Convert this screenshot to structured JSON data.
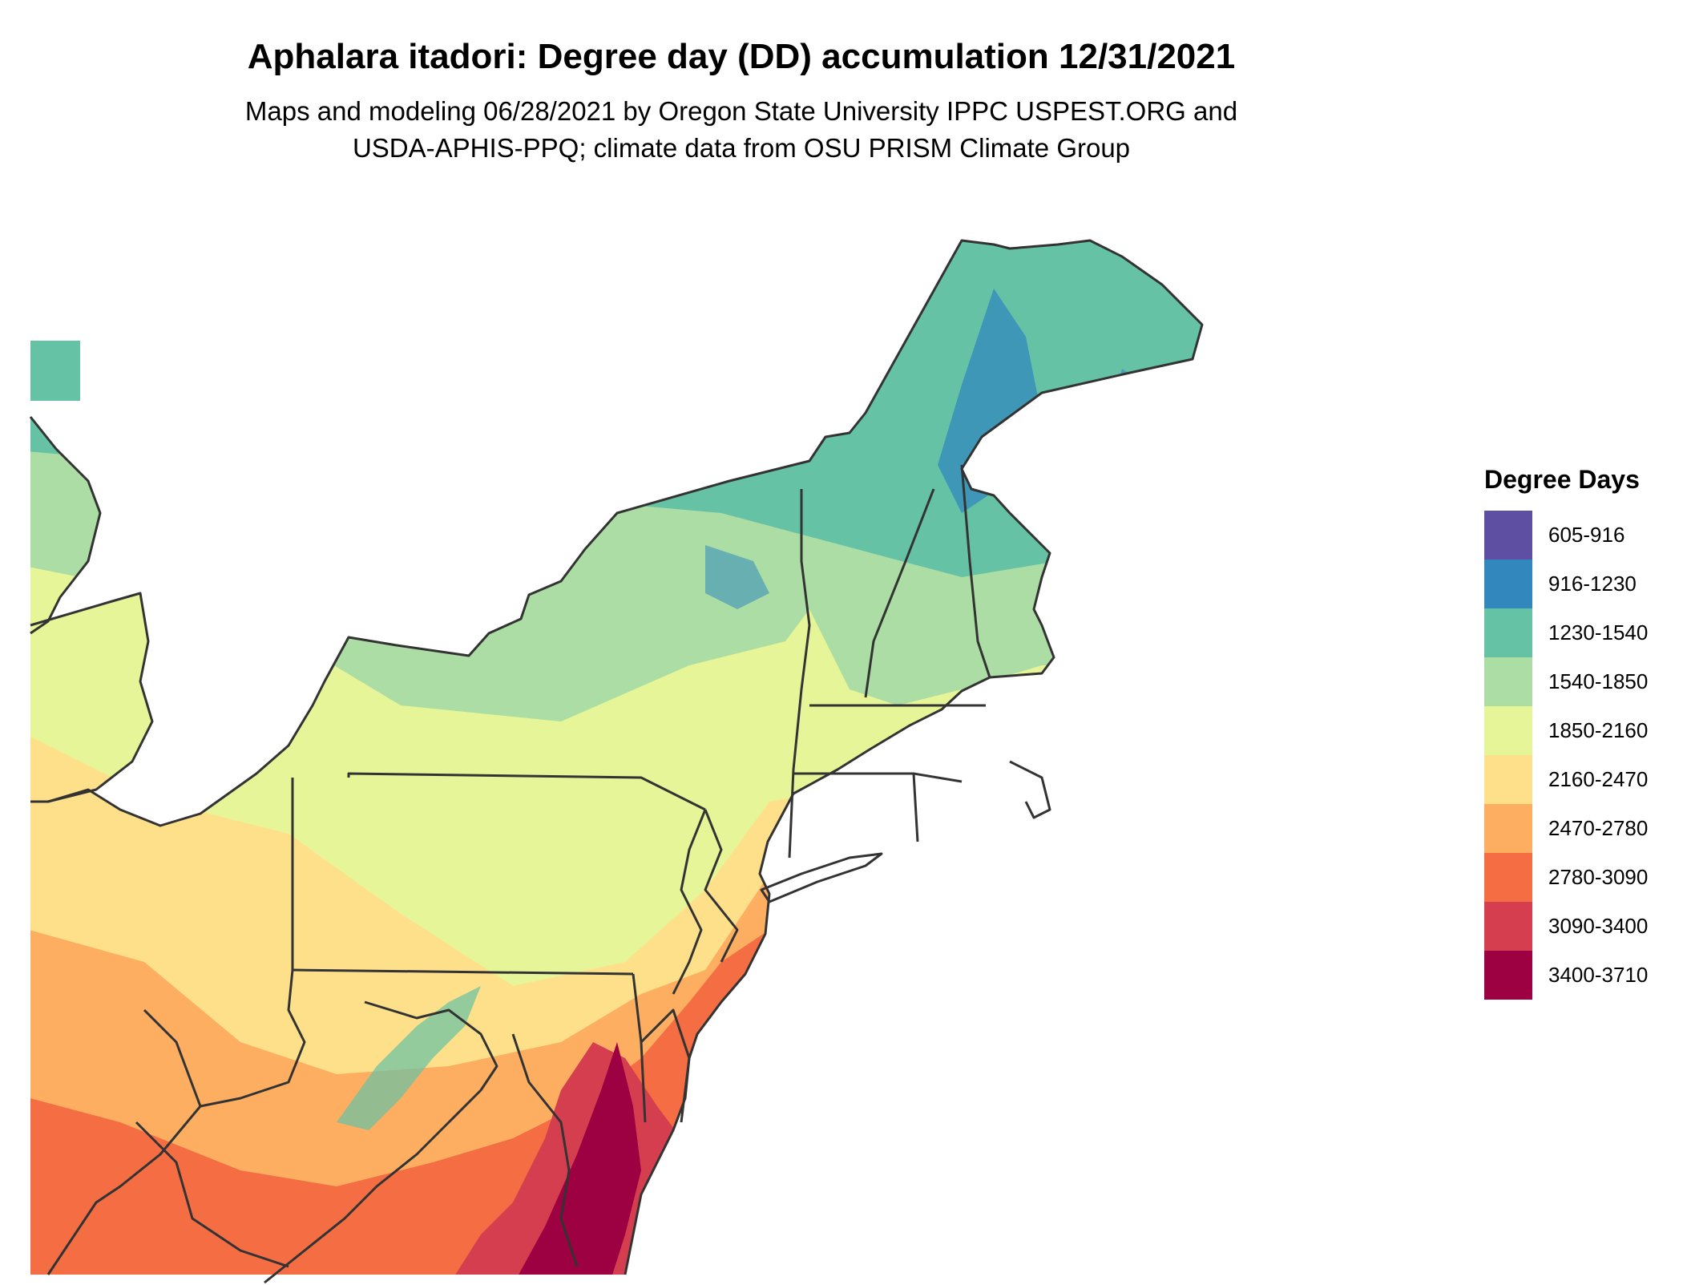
{
  "title": "Aphalara itadori: Degree day (DD) accumulation 12/31/2021",
  "subtitle_line1": "Maps and modeling 06/28/2021 by Oregon State University IPPC USPEST.ORG and",
  "subtitle_line2": "USDA-APHIS-PPQ; climate data from OSU PRISM Climate Group",
  "legend": {
    "title": "Degree Days",
    "items": [
      {
        "label": "605-916",
        "color": "#5e4fa2"
      },
      {
        "label": "916-1230",
        "color": "#3288bd"
      },
      {
        "label": "1230-1540",
        "color": "#66c2a5"
      },
      {
        "label": "1540-1850",
        "color": "#abdda4"
      },
      {
        "label": "1850-2160",
        "color": "#e6f598"
      },
      {
        "label": "2160-2470",
        "color": "#fee08b"
      },
      {
        "label": "2470-2780",
        "color": "#fdae61"
      },
      {
        "label": "2780-3090",
        "color": "#f46d43"
      },
      {
        "label": "3090-3400",
        "color": "#d53e4f"
      },
      {
        "label": "3400-3710",
        "color": "#9e0142"
      }
    ]
  }
}
